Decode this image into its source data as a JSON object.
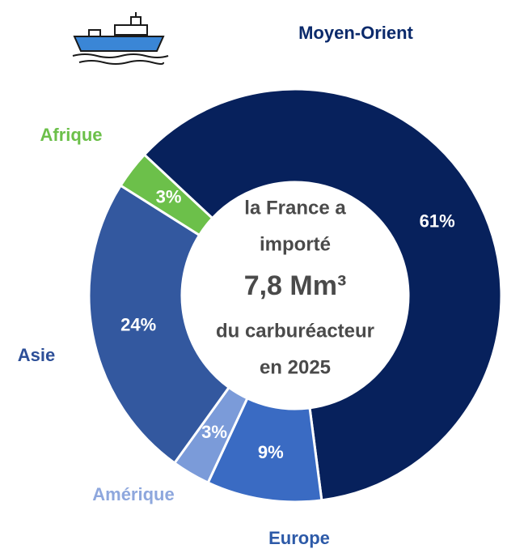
{
  "chart_data": {
    "type": "donut",
    "categories": [
      "Moyen-Orient",
      "Europe",
      "Amérique",
      "Asie",
      "Afrique"
    ],
    "values": [
      61,
      9,
      3,
      24,
      3
    ],
    "value_labels": [
      "61%",
      "9%",
      "3%",
      "24%",
      "3%"
    ],
    "colors": [
      "#07215c",
      "#3a6bc3",
      "#7b9bd9",
      "#33589f",
      "#6cc04a"
    ],
    "label_colors": [
      "#0b2a6b",
      "#2d5aa8",
      "#8ea7dd",
      "#2d4f98",
      "#6cc04a"
    ],
    "center_text": [
      "la France a",
      "importé",
      "7,8 Mm³",
      "du carburéacteur",
      "en 2025"
    ]
  }
}
